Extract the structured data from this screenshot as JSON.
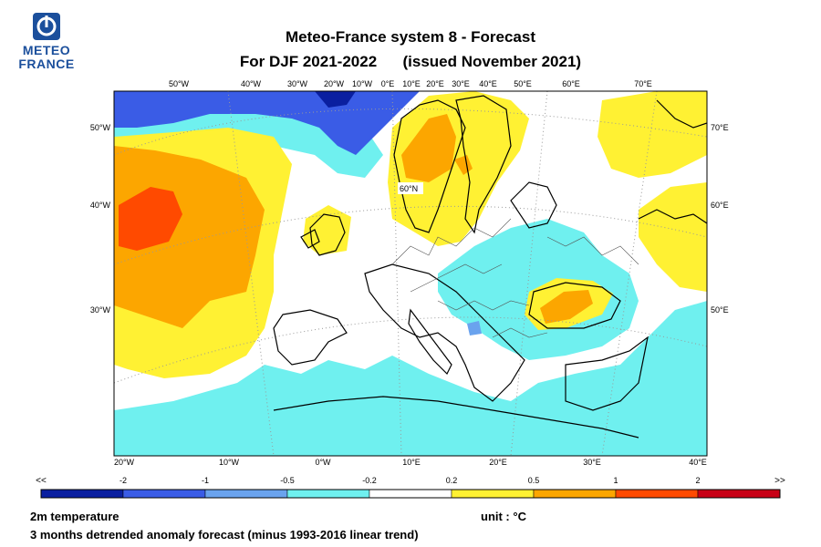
{
  "logo": {
    "line1": "METEO",
    "line2": "FRANCE"
  },
  "title": {
    "line1": "Meteo-France system 8  -  Forecast",
    "line2": "For DJF 2021-2022      (issued November 2021)"
  },
  "map": {
    "top_labels": [
      "50°W",
      "40°W",
      "30°W",
      "20°W",
      "10°W",
      "0°E",
      "10°E",
      "20°E",
      "30°E",
      "40°E",
      "50°E",
      "60°E",
      "70°E"
    ],
    "bottom_labels": [
      "20°W",
      "10°W",
      "0°W",
      "10°E",
      "20°E",
      "30°E",
      "40°E"
    ],
    "left_labels": [
      "50°W",
      "40°W",
      "30°W"
    ],
    "right_labels": [
      "70°E",
      "60°E",
      "50°E"
    ],
    "inner_label": "60°N"
  },
  "legend": {
    "left_end": "<<",
    "right_end": ">>",
    "breaks": [
      "-2",
      "-1",
      "-0.5",
      "-0.2",
      "0.2",
      "0.5",
      "1",
      "2"
    ],
    "colors": [
      "#0a1fa0",
      "#3a5ce6",
      "#6aa3ee",
      "#6ff0ef",
      "#ffffff",
      "#fff133",
      "#fca600",
      "#ff4a00",
      "#c80016"
    ]
  },
  "footer": {
    "variable": "2m temperature",
    "unit": "unit : °C",
    "description": "3 months detrended anomaly forecast (minus 1993-2016 linear trend)"
  }
}
